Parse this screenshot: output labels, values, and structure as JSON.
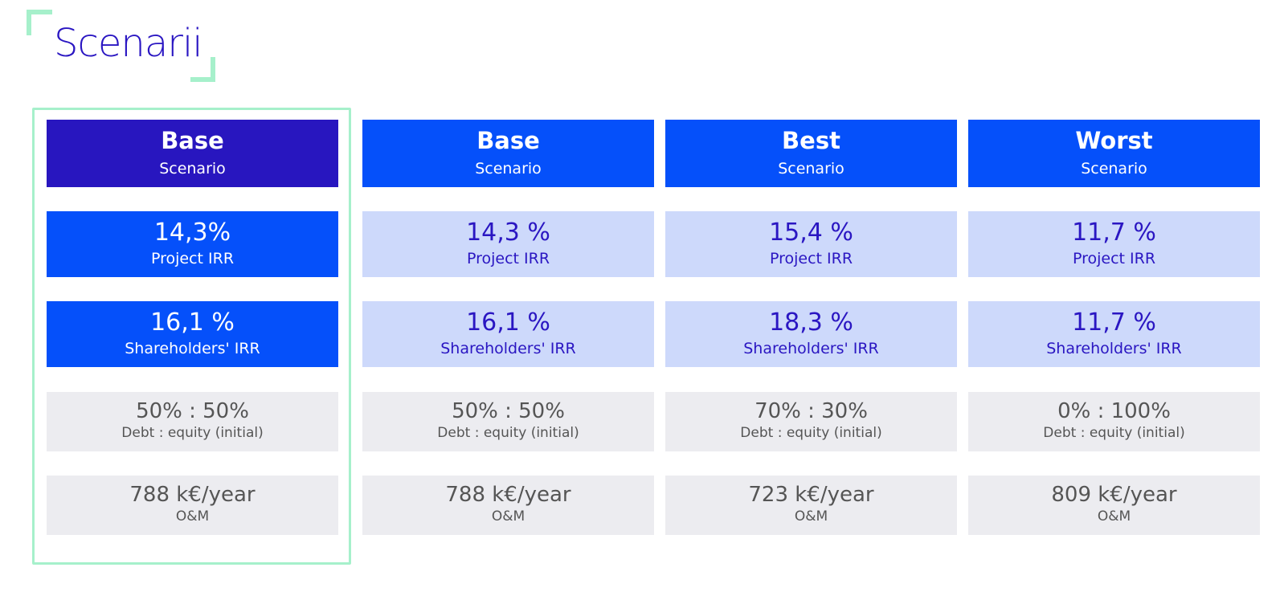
{
  "page": {
    "title": "Scenarii"
  },
  "columns": [
    {
      "name": "Base",
      "subtitle": "Scenario",
      "project_irr": "14,3%",
      "project_irr_label": "Project IRR",
      "shareholders_irr": "16,1 %",
      "shareholders_irr_label": "Shareholders' IRR",
      "debt_equity": "50% : 50%",
      "debt_equity_label": "Debt : equity (initial)",
      "om": "788 k€/year",
      "om_label": "O&M"
    },
    {
      "name": "Base",
      "subtitle": "Scenario",
      "project_irr": "14,3 %",
      "project_irr_label": "Project IRR",
      "shareholders_irr": "16,1 %",
      "shareholders_irr_label": "Shareholders' IRR",
      "debt_equity": "50% : 50%",
      "debt_equity_label": "Debt : equity (initial)",
      "om": "788 k€/year",
      "om_label": "O&M"
    },
    {
      "name": "Best",
      "subtitle": "Scenario",
      "project_irr": "15,4 %",
      "project_irr_label": "Project IRR",
      "shareholders_irr": "18,3 %",
      "shareholders_irr_label": "Shareholders' IRR",
      "debt_equity": "70% : 30%",
      "debt_equity_label": "Debt : equity (initial)",
      "om": "723 k€/year",
      "om_label": "O&M"
    },
    {
      "name": "Worst",
      "subtitle": "Scenario",
      "project_irr": "11,7 %",
      "project_irr_label": "Project IRR",
      "shareholders_irr": "11,7 %",
      "shareholders_irr_label": "Shareholders' IRR",
      "debt_equity": "0% : 100%",
      "debt_equity_label": "Debt : equity (initial)",
      "om": "809 k€/year",
      "om_label": "O&M"
    }
  ],
  "colors": {
    "accent_dark": "#2816bf",
    "accent_blue": "#0550fa",
    "light_blue": "#cdd9fb",
    "grey": "#ececf0",
    "bracket_green": "#a6f0cb",
    "title_color": "#2a16c2"
  }
}
